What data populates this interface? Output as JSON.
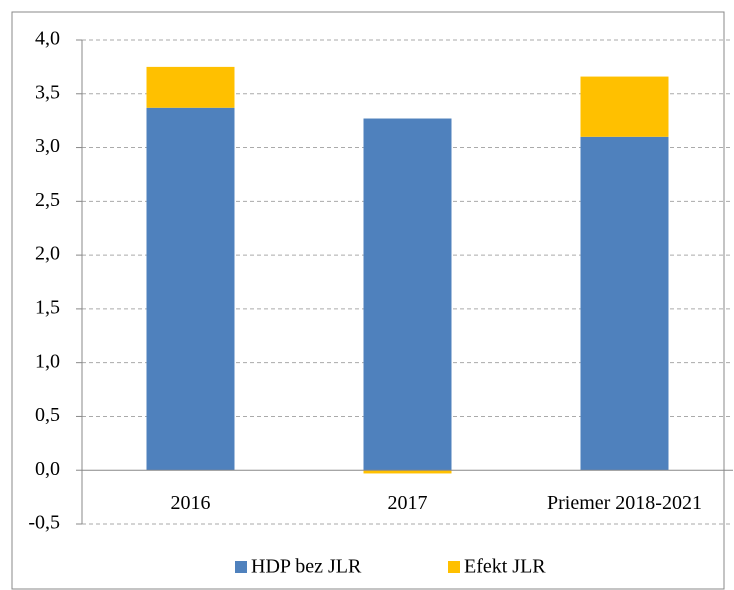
{
  "chart_data": {
    "type": "stacked_bar",
    "categories": [
      "2016",
      "2017",
      "Priemer 2018-2021"
    ],
    "series": [
      {
        "name": "HDP bez JLR",
        "color": "#4f81bd",
        "values": [
          3.37,
          3.27,
          3.1
        ]
      },
      {
        "name": "Efekt JLR",
        "color": "#ffc000",
        "values": [
          0.38,
          -0.03,
          0.56
        ]
      }
    ],
    "ylim": [
      -0.5,
      4.0
    ],
    "yticks": [
      {
        "value": -0.5,
        "label": "-0,5"
      },
      {
        "value": 0,
        "label": "0,0"
      },
      {
        "value": 0.5,
        "label": "0,5"
      },
      {
        "value": 1.0,
        "label": "1,0"
      },
      {
        "value": 1.5,
        "label": "1,5"
      },
      {
        "value": 2.0,
        "label": "2,0"
      },
      {
        "value": 2.5,
        "label": "2,5"
      },
      {
        "value": 3.0,
        "label": "3,0"
      },
      {
        "value": 3.5,
        "label": "3,5"
      },
      {
        "value": 4.0,
        "label": "4,0"
      }
    ],
    "grid": true,
    "legend": "bottom"
  }
}
